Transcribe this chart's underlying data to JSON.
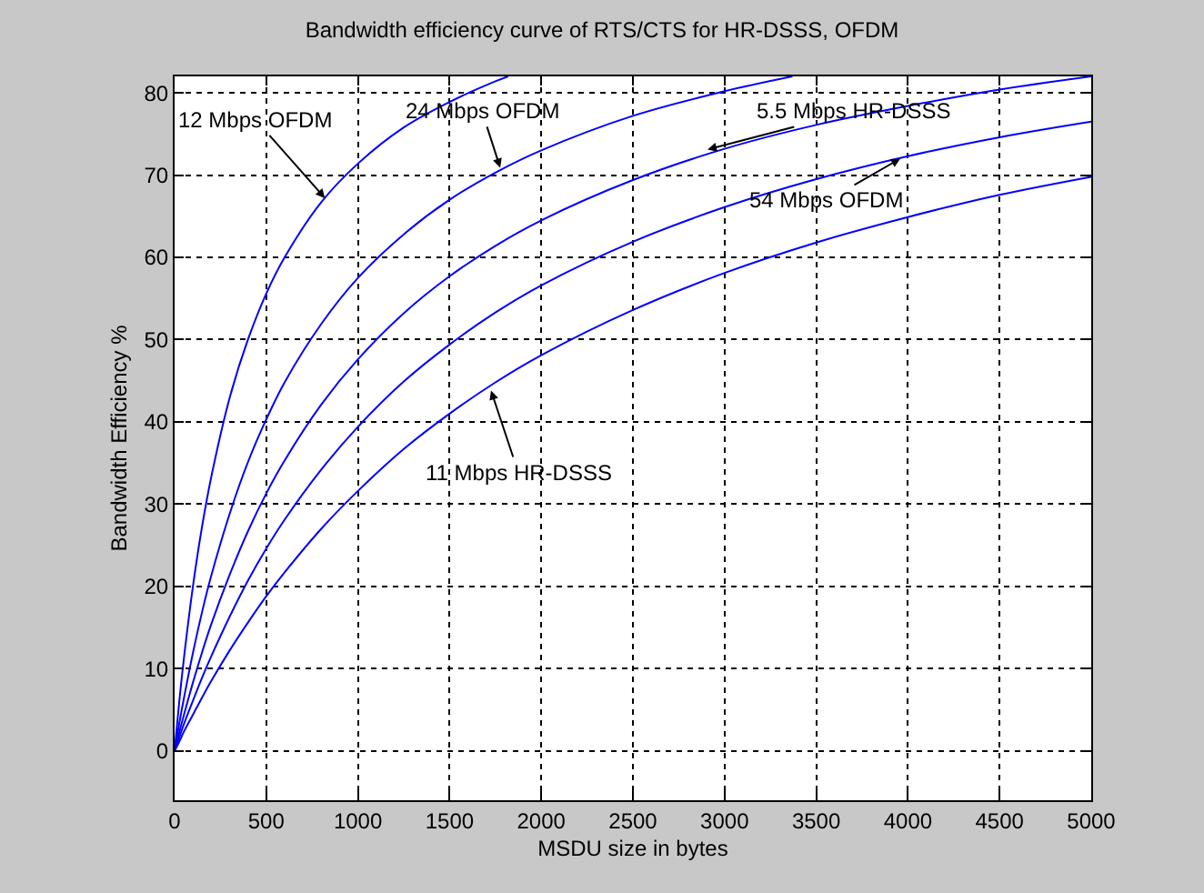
{
  "chart_data": {
    "type": "line",
    "title": "Bandwidth efficiency curve of RTS/CTS for HR-DSSS, OFDM",
    "xlabel": "MSDU size in bytes",
    "ylabel": "Bandwidth Efficiency %",
    "xlim": [
      0,
      5000
    ],
    "xticks": [
      0,
      500,
      1000,
      1500,
      2000,
      2500,
      3000,
      3500,
      4000,
      4500,
      5000
    ],
    "ylim": [
      -6,
      82
    ],
    "yticks": [
      0,
      10,
      20,
      30,
      40,
      50,
      60,
      70,
      80
    ],
    "grid": true,
    "series": [
      {
        "color": "#0000ff",
        "x": [
          0,
          25,
          50,
          100,
          150,
          200,
          300,
          400,
          500,
          600,
          800,
          1000,
          1250,
          1500,
          1750,
          1820
        ],
        "values": [
          0,
          5.9,
          11.1,
          20.0,
          27.3,
          33.3,
          42.9,
          50.0,
          55.6,
          60.0,
          66.7,
          71.4,
          75.8,
          78.9,
          81.4,
          82.0
        ]
      },
      {
        "color": "#0000ff",
        "x": [
          0,
          25,
          50,
          100,
          150,
          200,
          300,
          400,
          500,
          600,
          800,
          1000,
          1250,
          1500,
          1750,
          2000,
          2500,
          3000,
          3370
        ],
        "values": [
          0,
          3.3,
          6.3,
          11.9,
          16.9,
          21.3,
          28.8,
          35.1,
          40.3,
          44.8,
          51.9,
          57.5,
          62.8,
          67.0,
          70.3,
          73.0,
          77.2,
          80.2,
          82.0
        ]
      },
      {
        "color": "#0000ff",
        "x": [
          0,
          25,
          50,
          100,
          150,
          200,
          300,
          400,
          500,
          600,
          800,
          1000,
          1250,
          1500,
          1750,
          2000,
          2500,
          3000,
          3500,
          4000,
          4500,
          5000
        ],
        "values": [
          0,
          2.2,
          4.3,
          8.3,
          12.0,
          15.4,
          21.4,
          26.7,
          31.3,
          35.3,
          42.1,
          47.6,
          53.2,
          57.7,
          61.4,
          64.5,
          69.4,
          73.2,
          76.1,
          78.4,
          80.4,
          82.0
        ]
      },
      {
        "color": "#0000ff",
        "x": [
          0,
          25,
          50,
          100,
          150,
          200,
          300,
          400,
          500,
          600,
          800,
          1000,
          1250,
          1500,
          1750,
          2000,
          2500,
          3000,
          3500,
          4000,
          4500,
          5000
        ],
        "values": [
          0,
          1.6,
          3.2,
          6.1,
          8.9,
          11.5,
          16.3,
          20.7,
          24.6,
          28.1,
          34.2,
          39.4,
          44.9,
          49.4,
          53.3,
          56.6,
          61.9,
          66.1,
          69.5,
          72.3,
          74.6,
          76.5
        ]
      },
      {
        "color": "#0000ff",
        "x": [
          0,
          25,
          50,
          100,
          150,
          200,
          300,
          400,
          500,
          600,
          800,
          1000,
          1250,
          1500,
          1750,
          2000,
          2500,
          3000,
          3500,
          4000,
          4500,
          5000
        ],
        "values": [
          0,
          1.1,
          2.3,
          4.4,
          6.5,
          8.5,
          12.2,
          15.6,
          18.8,
          21.7,
          27.0,
          31.6,
          36.7,
          41.0,
          44.8,
          48.1,
          53.6,
          58.1,
          61.8,
          64.9,
          67.6,
          69.8
        ]
      }
    ],
    "annotations": [
      {
        "text": "12 Mbps OFDM",
        "x": 820,
        "y": 67.2
      },
      {
        "text": "24 Mbps OFDM",
        "x": 1776,
        "y": 70.9
      },
      {
        "text": "5.5 Mbps HR-DSSS",
        "x": 2907,
        "y": 73.1
      },
      {
        "text": "54 Mbps OFDM",
        "x": 3958,
        "y": 72.0
      },
      {
        "text": "11 Mbps HR-DSSS",
        "x": 1726,
        "y": 43.8
      }
    ]
  }
}
